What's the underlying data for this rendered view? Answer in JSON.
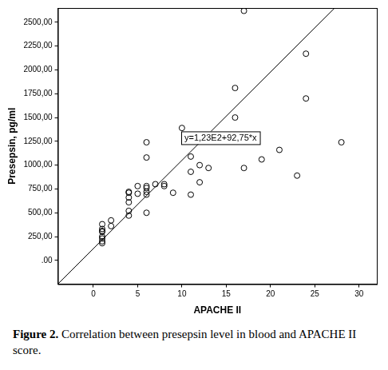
{
  "chart_data": {
    "type": "scatter",
    "x_label": "APACHE II",
    "y_label": "Presepsin, pg/ml",
    "x": [
      1,
      1,
      1,
      1,
      1,
      1,
      1,
      1,
      2,
      2,
      4,
      4,
      4,
      4,
      4,
      4,
      5,
      5,
      6,
      6,
      6,
      6,
      6,
      6,
      6,
      7,
      8,
      8,
      9,
      10,
      11,
      11,
      11,
      12,
      12,
      13,
      16,
      16,
      17,
      17,
      19,
      21,
      23,
      24,
      24,
      28
    ],
    "values": [
      180,
      200,
      230,
      250,
      300,
      310,
      330,
      380,
      360,
      420,
      470,
      520,
      610,
      660,
      710,
      720,
      700,
      780,
      500,
      690,
      720,
      760,
      780,
      1080,
      1240,
      800,
      780,
      800,
      710,
      1390,
      690,
      930,
      1090,
      820,
      1000,
      970,
      1500,
      1810,
      970,
      2620,
      1060,
      1160,
      890,
      1700,
      2170,
      1240
    ],
    "color": "#000000",
    "marker": "circle",
    "fit": {
      "intercept": 123,
      "slope": 92.75,
      "label": "y=1,23E2+92,75*x",
      "color": "#000000",
      "line_style": "solid"
    },
    "xlim": [
      -4,
      32
    ],
    "ylim": [
      -250,
      2650
    ],
    "xticks": [
      0,
      5,
      10,
      15,
      20,
      25,
      30
    ],
    "yticks": [
      {
        "value": 0,
        "label": ".00"
      },
      {
        "value": 250,
        "label": "250,00"
      },
      {
        "value": 500,
        "label": "500,00"
      },
      {
        "value": 750,
        "label": "750,00"
      },
      {
        "value": 1000,
        "label": "1000,00"
      },
      {
        "value": 1250,
        "label": "1250,00"
      },
      {
        "value": 1500,
        "label": "1500,00"
      },
      {
        "value": 1750,
        "label": "1750,00"
      },
      {
        "value": 2000,
        "label": "2000,00"
      },
      {
        "value": 2250,
        "label": "2250,00"
      },
      {
        "value": 2500,
        "label": "2500,00"
      }
    ],
    "grid": false,
    "legend": false,
    "caption": {
      "label": "Figure 2.",
      "text": "Correlation between presepsin level in blood and APACHE II score."
    }
  }
}
